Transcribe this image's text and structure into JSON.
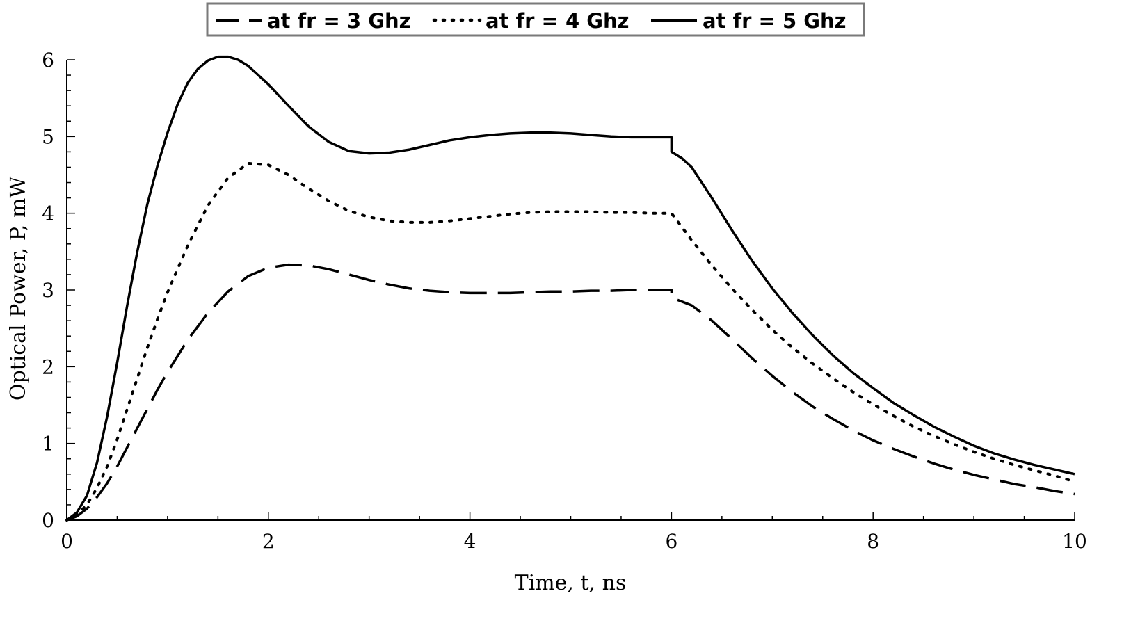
{
  "chart_data": {
    "type": "line",
    "title": "",
    "xlabel": "Time, t, ns",
    "ylabel": "Optical Power, P, mW",
    "xlim": [
      0,
      10
    ],
    "ylim": [
      0,
      6
    ],
    "x_ticks": [
      0,
      2,
      4,
      6,
      8,
      10
    ],
    "y_ticks": [
      0,
      1,
      2,
      3,
      4,
      5,
      6
    ],
    "x_tick_labels": [
      "0",
      "2",
      "4",
      "6",
      "8",
      "10"
    ],
    "y_tick_labels": [
      "0",
      "1",
      "2",
      "3",
      "4",
      "5",
      "6"
    ],
    "grid": false,
    "legend_position": "top-center",
    "series": [
      {
        "name": "at fr = 3 Ghz",
        "style": "dashed",
        "color": "#000000",
        "x": [
          0,
          0.1,
          0.2,
          0.3,
          0.4,
          0.5,
          0.6,
          0.7,
          0.8,
          0.9,
          1.0,
          1.2,
          1.4,
          1.6,
          1.8,
          2.0,
          2.2,
          2.4,
          2.6,
          2.8,
          3.0,
          3.2,
          3.4,
          3.6,
          3.8,
          4.0,
          4.2,
          4.4,
          4.6,
          4.8,
          5.0,
          5.2,
          5.4,
          5.6,
          5.8,
          6.0,
          6.0,
          6.2,
          6.4,
          6.6,
          6.8,
          7.0,
          7.2,
          7.4,
          7.6,
          7.8,
          8.0,
          8.2,
          8.4,
          8.6,
          8.8,
          9.0,
          9.2,
          9.4,
          9.6,
          9.8,
          10.0
        ],
        "y": [
          0,
          0.05,
          0.15,
          0.3,
          0.48,
          0.7,
          0.95,
          1.2,
          1.45,
          1.7,
          1.93,
          2.35,
          2.7,
          2.98,
          3.18,
          3.29,
          3.33,
          3.32,
          3.27,
          3.2,
          3.13,
          3.07,
          3.02,
          2.99,
          2.97,
          2.96,
          2.96,
          2.96,
          2.97,
          2.98,
          2.98,
          2.99,
          2.99,
          3.0,
          3.0,
          3.0,
          2.9,
          2.8,
          2.6,
          2.36,
          2.11,
          1.88,
          1.67,
          1.48,
          1.32,
          1.17,
          1.04,
          0.93,
          0.83,
          0.74,
          0.66,
          0.59,
          0.53,
          0.47,
          0.43,
          0.38,
          0.34
        ]
      },
      {
        "name": "at fr = 4 Ghz",
        "style": "dotted",
        "color": "#000000",
        "x": [
          0,
          0.1,
          0.2,
          0.3,
          0.4,
          0.5,
          0.6,
          0.7,
          0.8,
          0.9,
          1.0,
          1.2,
          1.4,
          1.6,
          1.8,
          2.0,
          2.2,
          2.4,
          2.6,
          2.8,
          3.0,
          3.2,
          3.4,
          3.6,
          3.8,
          4.0,
          4.2,
          4.4,
          4.6,
          4.8,
          5.0,
          5.2,
          5.4,
          5.6,
          5.8,
          6.0,
          6.2,
          6.4,
          6.6,
          6.8,
          7.0,
          7.2,
          7.4,
          7.6,
          7.8,
          8.0,
          8.2,
          8.4,
          8.6,
          8.8,
          9.0,
          9.2,
          9.4,
          9.6,
          9.8,
          10.0
        ],
        "y": [
          0,
          0.07,
          0.2,
          0.42,
          0.7,
          1.05,
          1.45,
          1.85,
          2.25,
          2.62,
          2.97,
          3.58,
          4.1,
          4.46,
          4.65,
          4.63,
          4.5,
          4.32,
          4.16,
          4.03,
          3.95,
          3.9,
          3.88,
          3.88,
          3.9,
          3.93,
          3.96,
          3.99,
          4.01,
          4.02,
          4.02,
          4.02,
          4.01,
          4.01,
          4.0,
          4.0,
          3.65,
          3.32,
          3.02,
          2.74,
          2.48,
          2.25,
          2.04,
          1.85,
          1.67,
          1.51,
          1.36,
          1.22,
          1.1,
          0.99,
          0.89,
          0.8,
          0.72,
          0.65,
          0.58,
          0.5
        ]
      },
      {
        "name": "at fr = 5 Ghz",
        "style": "solid",
        "color": "#000000",
        "x": [
          0,
          0.1,
          0.2,
          0.3,
          0.4,
          0.5,
          0.6,
          0.7,
          0.8,
          0.9,
          1.0,
          1.1,
          1.2,
          1.3,
          1.4,
          1.5,
          1.6,
          1.7,
          1.8,
          2.0,
          2.2,
          2.4,
          2.6,
          2.8,
          3.0,
          3.2,
          3.4,
          3.6,
          3.8,
          4.0,
          4.2,
          4.4,
          4.6,
          4.8,
          5.0,
          5.2,
          5.4,
          5.6,
          5.8,
          6.0,
          6.0,
          6.1,
          6.2,
          6.4,
          6.6,
          6.8,
          7.0,
          7.2,
          7.4,
          7.6,
          7.8,
          8.0,
          8.2,
          8.4,
          8.6,
          8.8,
          9.0,
          9.2,
          9.4,
          9.6,
          9.8,
          10.0
        ],
        "y": [
          0,
          0.1,
          0.32,
          0.75,
          1.35,
          2.05,
          2.8,
          3.5,
          4.12,
          4.62,
          5.05,
          5.42,
          5.7,
          5.88,
          5.99,
          6.04,
          6.04,
          6.0,
          5.92,
          5.68,
          5.4,
          5.13,
          4.93,
          4.81,
          4.78,
          4.79,
          4.83,
          4.89,
          4.95,
          4.99,
          5.02,
          5.04,
          5.05,
          5.05,
          5.04,
          5.02,
          5.0,
          4.99,
          4.99,
          4.99,
          4.8,
          4.72,
          4.6,
          4.2,
          3.78,
          3.38,
          3.02,
          2.7,
          2.41,
          2.15,
          1.92,
          1.72,
          1.53,
          1.37,
          1.22,
          1.09,
          0.97,
          0.87,
          0.79,
          0.72,
          0.66,
          0.6
        ]
      }
    ]
  }
}
